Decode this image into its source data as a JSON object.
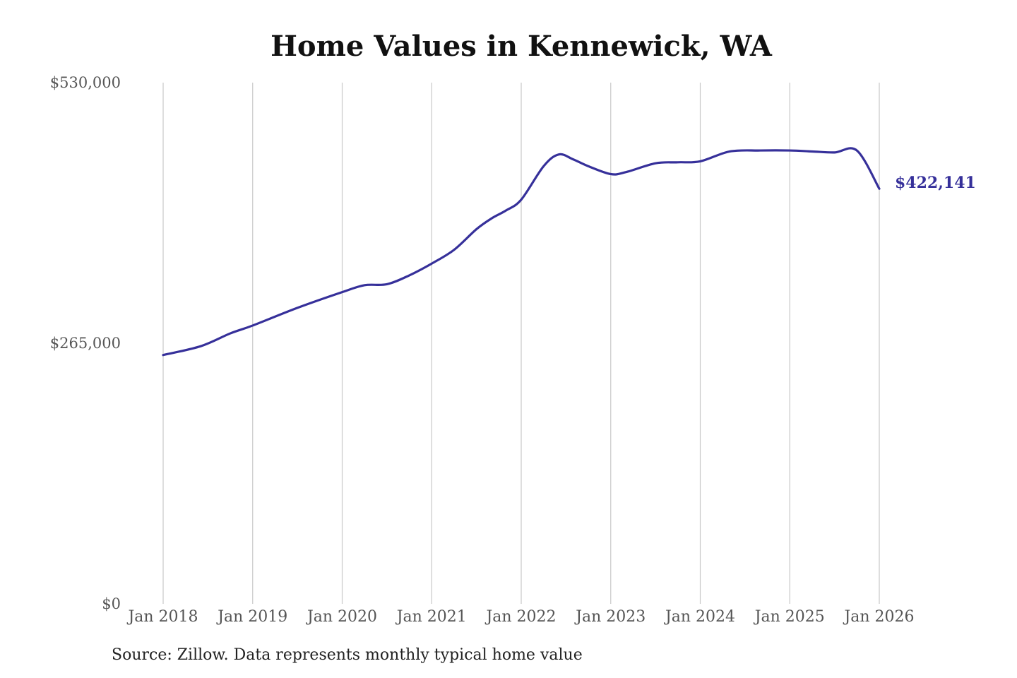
{
  "chart_data": {
    "type": "line",
    "title": "Home Values in Kennewick, WA",
    "source": "Source: Zillow. Data represents monthly typical home value",
    "xlabel": "",
    "ylabel": "",
    "ylim": [
      0,
      530000
    ],
    "y_ticks": [
      0,
      265000,
      530000
    ],
    "y_tick_labels": [
      "$0",
      "$265,000",
      "$530,000"
    ],
    "x_tick_labels": [
      "Jan 2018",
      "Jan 2019",
      "Jan 2020",
      "Jan 2021",
      "Jan 2022",
      "Jan 2023",
      "Jan 2024",
      "Jan 2025",
      "Jan 2026"
    ],
    "x_tick_positions": [
      2018,
      2019,
      2020,
      2021,
      2022,
      2023,
      2024,
      2025,
      2026
    ],
    "xlim": [
      2018,
      2026
    ],
    "grid": "vertical",
    "line_color": "#36309a",
    "end_label": "$422,141",
    "series": [
      {
        "x": [
          2018.0,
          2018.42,
          2018.75,
          2019.0,
          2019.5,
          2020.0,
          2020.25,
          2020.5,
          2020.75,
          2021.0,
          2021.25,
          2021.5,
          2021.67,
          2021.83,
          2022.0,
          2022.25,
          2022.42,
          2022.58,
          2022.75,
          2023.0,
          2023.17,
          2023.5,
          2023.75,
          2024.0,
          2024.33,
          2024.67,
          2025.0,
          2025.25,
          2025.5,
          2025.75,
          2026.0
        ],
        "y": [
          253000,
          262000,
          275000,
          283000,
          301000,
          317000,
          324000,
          325000,
          334000,
          346000,
          360000,
          381000,
          392000,
          400000,
          411000,
          445000,
          457000,
          452000,
          445000,
          437000,
          439000,
          448000,
          449000,
          450000,
          460000,
          461000,
          461000,
          460000,
          459000,
          461000,
          422141
        ]
      }
    ]
  }
}
